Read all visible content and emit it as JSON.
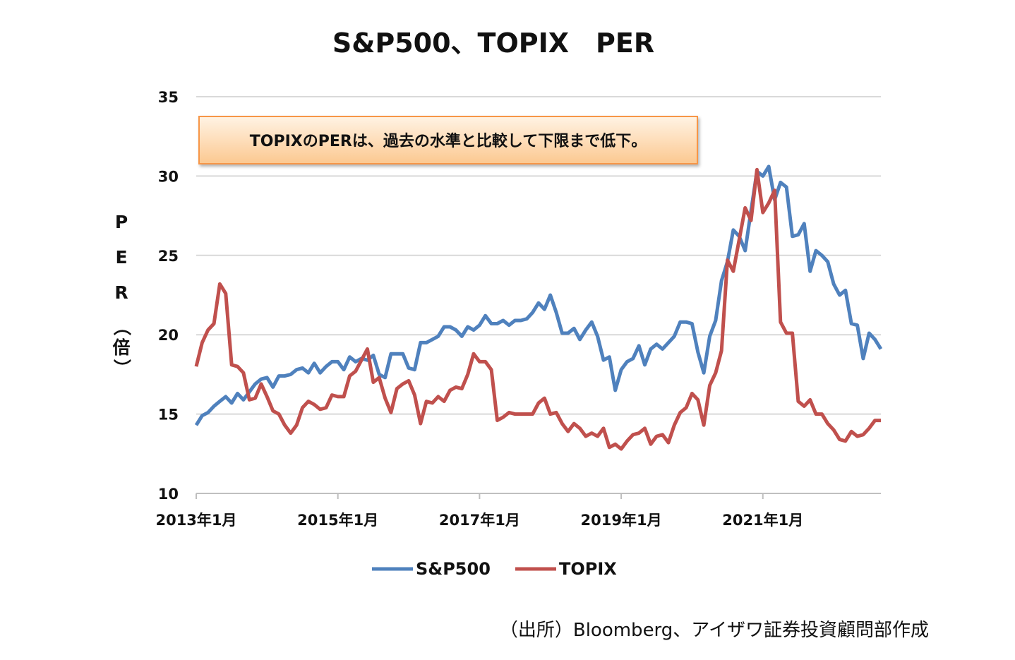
{
  "chart_data": {
    "type": "line",
    "title": "S&P500、TOPIX　PER",
    "ylabel": "PER（倍）",
    "ylim": [
      10,
      35
    ],
    "yticks": [
      10,
      15,
      20,
      25,
      30,
      35
    ],
    "xlim": [
      "2013-01",
      "2022-09"
    ],
    "xticks": [
      {
        "label": "2013年1月",
        "date": "2013-01"
      },
      {
        "label": "2015年1月",
        "date": "2015-01"
      },
      {
        "label": "2017年1月",
        "date": "2017-01"
      },
      {
        "label": "2019年1月",
        "date": "2019-01"
      },
      {
        "label": "2021年1月",
        "date": "2021-01"
      }
    ],
    "grid": true,
    "legend": "bottom",
    "annotation": "TOPIXのPERは、過去の水準と比較して下限まで低下。",
    "series": [
      {
        "name": "S&P500",
        "color": "#4F81BD",
        "points": [
          [
            "2013-01",
            14.3
          ],
          [
            "2013-02",
            14.9
          ],
          [
            "2013-03",
            15.1
          ],
          [
            "2013-04",
            15.5
          ],
          [
            "2013-05",
            15.8
          ],
          [
            "2013-06",
            16.1
          ],
          [
            "2013-07",
            15.7
          ],
          [
            "2013-08",
            16.3
          ],
          [
            "2013-09",
            15.9
          ],
          [
            "2013-10",
            16.4
          ],
          [
            "2013-11",
            16.9
          ],
          [
            "2013-12",
            17.2
          ],
          [
            "2014-01",
            17.3
          ],
          [
            "2014-02",
            16.7
          ],
          [
            "2014-03",
            17.4
          ],
          [
            "2014-04",
            17.4
          ],
          [
            "2014-05",
            17.5
          ],
          [
            "2014-06",
            17.8
          ],
          [
            "2014-07",
            17.9
          ],
          [
            "2014-08",
            17.6
          ],
          [
            "2014-09",
            18.2
          ],
          [
            "2014-10",
            17.6
          ],
          [
            "2014-11",
            18.0
          ],
          [
            "2014-12",
            18.3
          ],
          [
            "2015-01",
            18.3
          ],
          [
            "2015-02",
            17.8
          ],
          [
            "2015-03",
            18.6
          ],
          [
            "2015-04",
            18.3
          ],
          [
            "2015-05",
            18.5
          ],
          [
            "2015-06",
            18.4
          ],
          [
            "2015-07",
            18.7
          ],
          [
            "2015-08",
            17.5
          ],
          [
            "2015-09",
            17.3
          ],
          [
            "2015-10",
            18.8
          ],
          [
            "2015-11",
            18.8
          ],
          [
            "2015-12",
            18.8
          ],
          [
            "2016-01",
            17.9
          ],
          [
            "2016-02",
            17.8
          ],
          [
            "2016-03",
            19.5
          ],
          [
            "2016-04",
            19.5
          ],
          [
            "2016-05",
            19.7
          ],
          [
            "2016-06",
            19.9
          ],
          [
            "2016-07",
            20.5
          ],
          [
            "2016-08",
            20.5
          ],
          [
            "2016-09",
            20.3
          ],
          [
            "2016-10",
            19.9
          ],
          [
            "2016-11",
            20.5
          ],
          [
            "2016-12",
            20.3
          ],
          [
            "2017-01",
            20.6
          ],
          [
            "2017-02",
            21.2
          ],
          [
            "2017-03",
            20.7
          ],
          [
            "2017-04",
            20.7
          ],
          [
            "2017-05",
            20.9
          ],
          [
            "2017-06",
            20.6
          ],
          [
            "2017-07",
            20.9
          ],
          [
            "2017-08",
            20.9
          ],
          [
            "2017-09",
            21.0
          ],
          [
            "2017-10",
            21.4
          ],
          [
            "2017-11",
            22.0
          ],
          [
            "2017-12",
            21.6
          ],
          [
            "2018-01",
            22.5
          ],
          [
            "2018-02",
            21.4
          ],
          [
            "2018-03",
            20.1
          ],
          [
            "2018-04",
            20.1
          ],
          [
            "2018-05",
            20.4
          ],
          [
            "2018-06",
            19.7
          ],
          [
            "2018-07",
            20.3
          ],
          [
            "2018-08",
            20.8
          ],
          [
            "2018-09",
            19.9
          ],
          [
            "2018-10",
            18.4
          ],
          [
            "2018-11",
            18.6
          ],
          [
            "2018-12",
            16.5
          ],
          [
            "2019-01",
            17.8
          ],
          [
            "2019-02",
            18.3
          ],
          [
            "2019-03",
            18.5
          ],
          [
            "2019-04",
            19.3
          ],
          [
            "2019-05",
            18.1
          ],
          [
            "2019-06",
            19.1
          ],
          [
            "2019-07",
            19.4
          ],
          [
            "2019-08",
            19.1
          ],
          [
            "2019-09",
            19.5
          ],
          [
            "2019-10",
            19.9
          ],
          [
            "2019-11",
            20.8
          ],
          [
            "2019-12",
            20.8
          ],
          [
            "2020-01",
            20.7
          ],
          [
            "2020-02",
            18.9
          ],
          [
            "2020-03",
            17.6
          ],
          [
            "2020-04",
            19.9
          ],
          [
            "2020-05",
            20.9
          ],
          [
            "2020-06",
            23.4
          ],
          [
            "2020-07",
            24.6
          ],
          [
            "2020-08",
            26.6
          ],
          [
            "2020-09",
            26.2
          ],
          [
            "2020-10",
            25.3
          ],
          [
            "2020-11",
            27.8
          ],
          [
            "2020-12",
            30.3
          ],
          [
            "2021-01",
            30.0
          ],
          [
            "2021-02",
            30.6
          ],
          [
            "2021-03",
            28.5
          ],
          [
            "2021-04",
            29.6
          ],
          [
            "2021-05",
            29.3
          ],
          [
            "2021-06",
            26.2
          ],
          [
            "2021-07",
            26.3
          ],
          [
            "2021-08",
            27.0
          ],
          [
            "2021-09",
            24.0
          ],
          [
            "2021-10",
            25.3
          ],
          [
            "2021-11",
            25.0
          ],
          [
            "2021-12",
            24.6
          ],
          [
            "2022-01",
            23.2
          ],
          [
            "2022-02",
            22.5
          ],
          [
            "2022-03",
            22.8
          ],
          [
            "2022-04",
            20.7
          ],
          [
            "2022-05",
            20.6
          ],
          [
            "2022-06",
            18.5
          ],
          [
            "2022-07",
            20.1
          ],
          [
            "2022-08",
            19.7
          ],
          [
            "2022-09",
            19.1
          ]
        ]
      },
      {
        "name": "TOPIX",
        "color": "#C0504D",
        "points": [
          [
            "2013-01",
            18.0
          ],
          [
            "2013-02",
            19.5
          ],
          [
            "2013-03",
            20.3
          ],
          [
            "2013-04",
            20.7
          ],
          [
            "2013-05",
            23.2
          ],
          [
            "2013-06",
            22.6
          ],
          [
            "2013-07",
            18.1
          ],
          [
            "2013-08",
            18.0
          ],
          [
            "2013-09",
            17.6
          ],
          [
            "2013-10",
            15.9
          ],
          [
            "2013-11",
            16.0
          ],
          [
            "2013-12",
            16.9
          ],
          [
            "2014-01",
            16.1
          ],
          [
            "2014-02",
            15.2
          ],
          [
            "2014-03",
            15.0
          ],
          [
            "2014-04",
            14.3
          ],
          [
            "2014-05",
            13.8
          ],
          [
            "2014-06",
            14.3
          ],
          [
            "2014-07",
            15.4
          ],
          [
            "2014-08",
            15.8
          ],
          [
            "2014-09",
            15.6
          ],
          [
            "2014-10",
            15.3
          ],
          [
            "2014-11",
            15.4
          ],
          [
            "2014-12",
            16.2
          ],
          [
            "2015-01",
            16.1
          ],
          [
            "2015-02",
            16.1
          ],
          [
            "2015-03",
            17.4
          ],
          [
            "2015-04",
            17.7
          ],
          [
            "2015-05",
            18.4
          ],
          [
            "2015-06",
            19.1
          ],
          [
            "2015-07",
            17.0
          ],
          [
            "2015-08",
            17.3
          ],
          [
            "2015-09",
            16.0
          ],
          [
            "2015-10",
            15.1
          ],
          [
            "2015-11",
            16.6
          ],
          [
            "2015-12",
            16.9
          ],
          [
            "2016-01",
            17.1
          ],
          [
            "2016-02",
            16.2
          ],
          [
            "2016-03",
            14.4
          ],
          [
            "2016-04",
            15.8
          ],
          [
            "2016-05",
            15.7
          ],
          [
            "2016-06",
            16.1
          ],
          [
            "2016-07",
            15.8
          ],
          [
            "2016-08",
            16.5
          ],
          [
            "2016-09",
            16.7
          ],
          [
            "2016-10",
            16.6
          ],
          [
            "2016-11",
            17.5
          ],
          [
            "2016-12",
            18.8
          ],
          [
            "2017-01",
            18.3
          ],
          [
            "2017-02",
            18.3
          ],
          [
            "2017-03",
            17.8
          ],
          [
            "2017-04",
            14.6
          ],
          [
            "2017-05",
            14.8
          ],
          [
            "2017-06",
            15.1
          ],
          [
            "2017-07",
            15.0
          ],
          [
            "2017-08",
            15.0
          ],
          [
            "2017-09",
            15.0
          ],
          [
            "2017-10",
            15.0
          ],
          [
            "2017-11",
            15.7
          ],
          [
            "2017-12",
            16.0
          ],
          [
            "2018-01",
            15.0
          ],
          [
            "2018-02",
            15.1
          ],
          [
            "2018-03",
            14.4
          ],
          [
            "2018-04",
            13.9
          ],
          [
            "2018-05",
            14.4
          ],
          [
            "2018-06",
            14.1
          ],
          [
            "2018-07",
            13.6
          ],
          [
            "2018-08",
            13.8
          ],
          [
            "2018-09",
            13.6
          ],
          [
            "2018-10",
            14.1
          ],
          [
            "2018-11",
            12.9
          ],
          [
            "2018-12",
            13.1
          ],
          [
            "2019-01",
            12.8
          ],
          [
            "2019-02",
            13.3
          ],
          [
            "2019-03",
            13.7
          ],
          [
            "2019-04",
            13.8
          ],
          [
            "2019-05",
            14.1
          ],
          [
            "2019-06",
            13.1
          ],
          [
            "2019-07",
            13.6
          ],
          [
            "2019-08",
            13.7
          ],
          [
            "2019-09",
            13.2
          ],
          [
            "2019-10",
            14.3
          ],
          [
            "2019-11",
            15.1
          ],
          [
            "2019-12",
            15.4
          ],
          [
            "2020-01",
            16.3
          ],
          [
            "2020-02",
            15.9
          ],
          [
            "2020-03",
            14.3
          ],
          [
            "2020-04",
            16.8
          ],
          [
            "2020-05",
            17.6
          ],
          [
            "2020-06",
            19.0
          ],
          [
            "2020-07",
            24.7
          ],
          [
            "2020-08",
            24.0
          ],
          [
            "2020-09",
            26.0
          ],
          [
            "2020-10",
            28.0
          ],
          [
            "2020-11",
            27.2
          ],
          [
            "2020-12",
            30.4
          ],
          [
            "2021-01",
            27.7
          ],
          [
            "2021-02",
            28.3
          ],
          [
            "2021-03",
            29.1
          ],
          [
            "2021-04",
            20.8
          ],
          [
            "2021-05",
            20.1
          ],
          [
            "2021-06",
            20.1
          ],
          [
            "2021-07",
            15.8
          ],
          [
            "2021-08",
            15.5
          ],
          [
            "2021-09",
            15.9
          ],
          [
            "2021-10",
            15.0
          ],
          [
            "2021-11",
            15.0
          ],
          [
            "2021-12",
            14.4
          ],
          [
            "2022-01",
            14.0
          ],
          [
            "2022-02",
            13.4
          ],
          [
            "2022-03",
            13.3
          ],
          [
            "2022-04",
            13.9
          ],
          [
            "2022-05",
            13.6
          ],
          [
            "2022-06",
            13.7
          ],
          [
            "2022-07",
            14.1
          ],
          [
            "2022-08",
            14.6
          ],
          [
            "2022-09",
            14.6
          ]
        ]
      }
    ]
  },
  "source": "（出所）Bloomberg、アイザワ証券投資顧問部作成"
}
